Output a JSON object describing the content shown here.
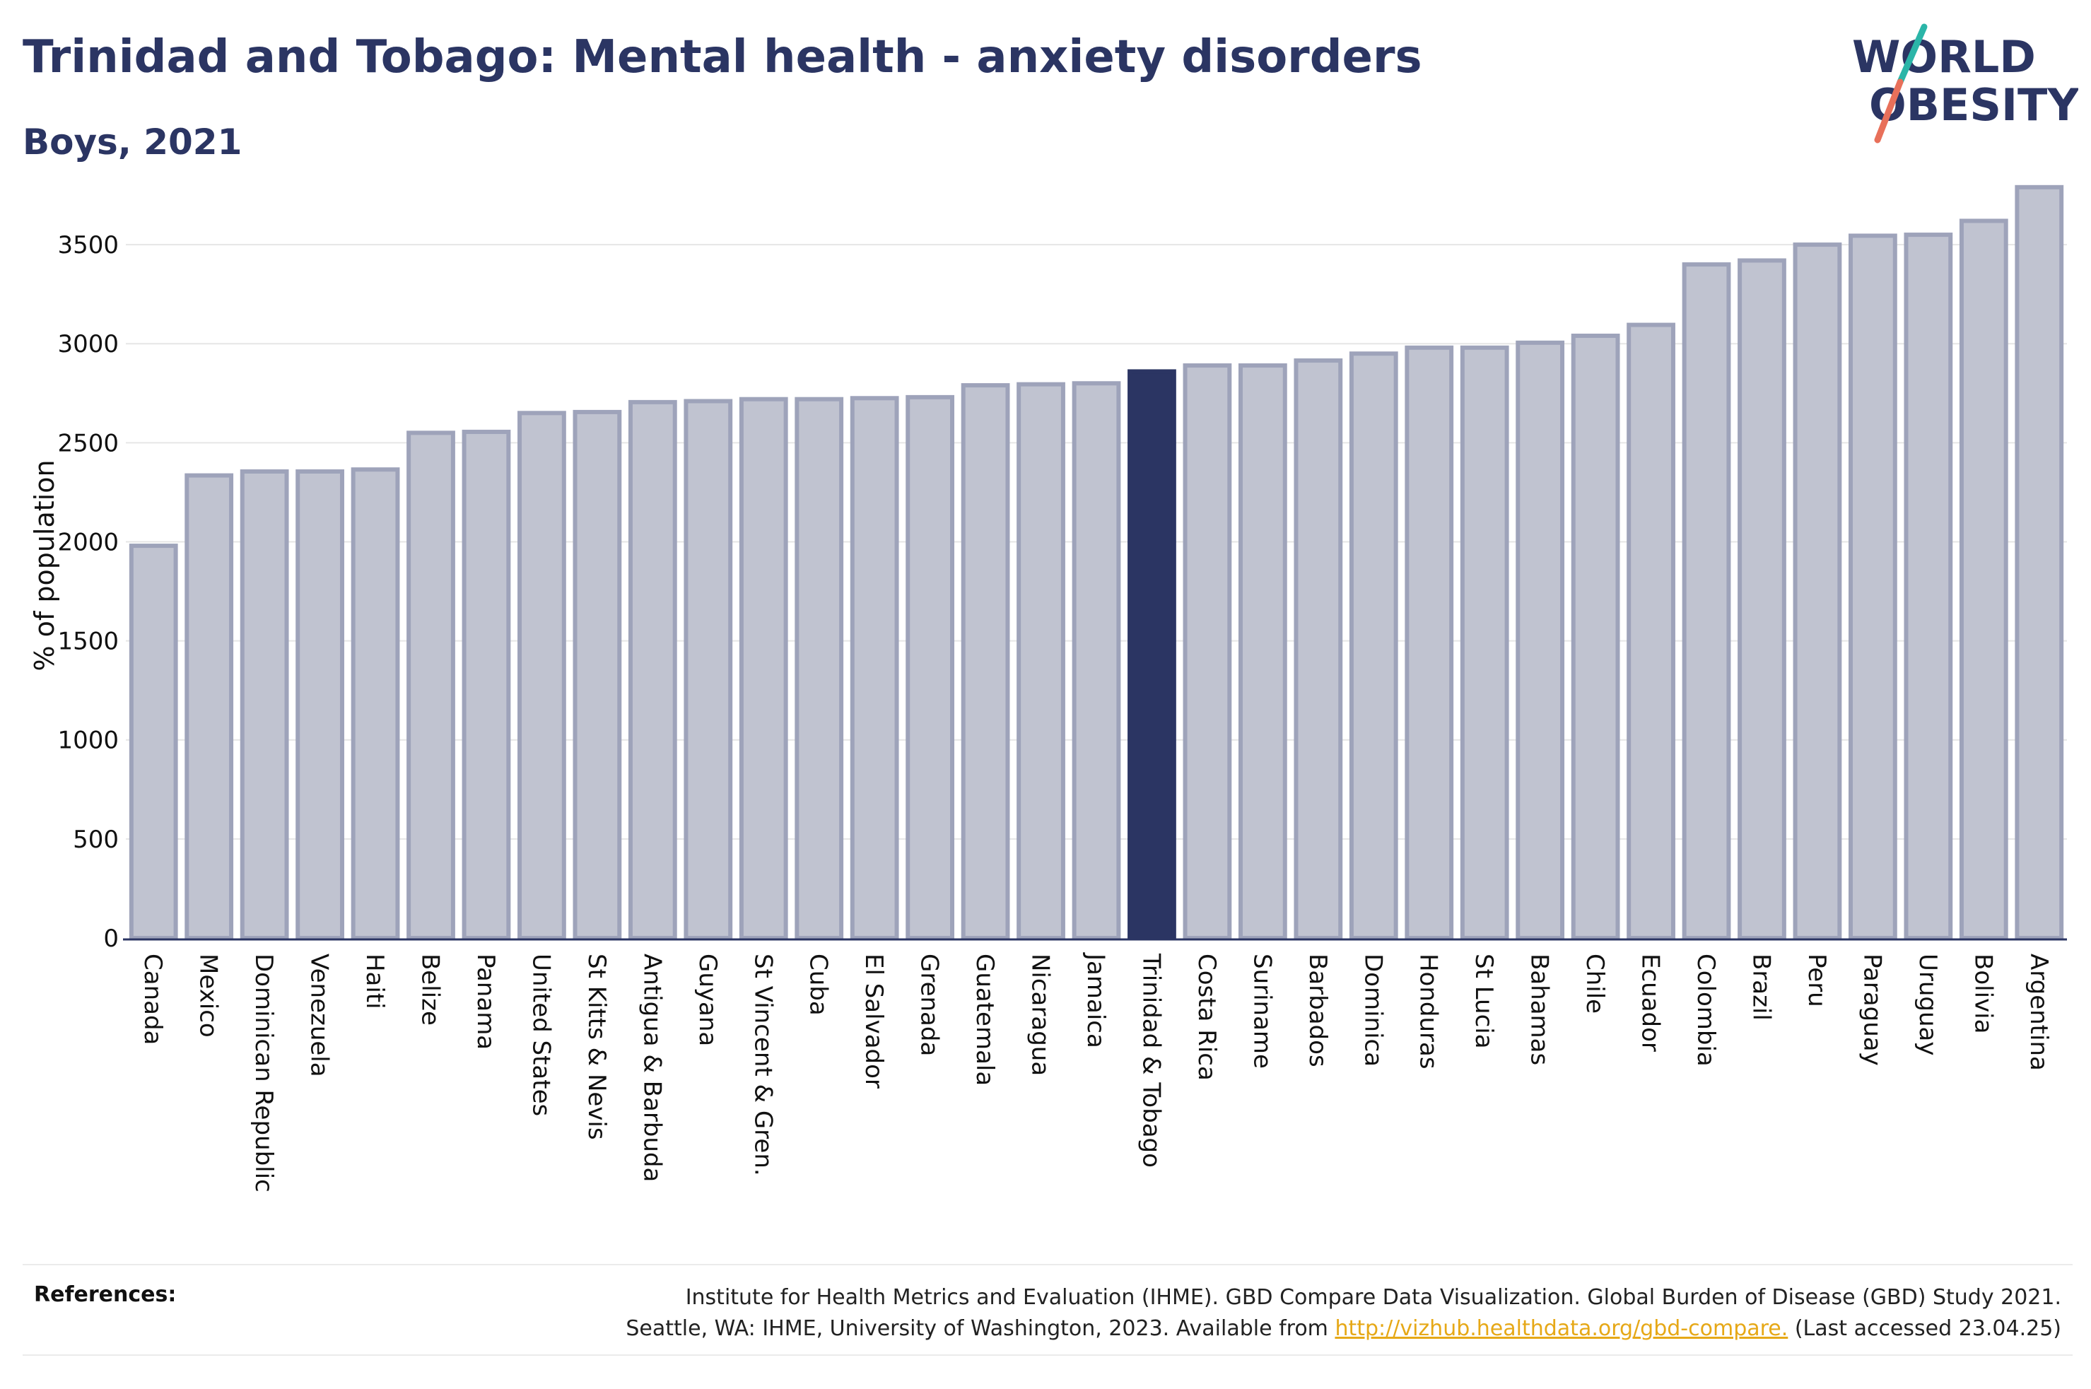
{
  "header": {
    "title": "Trinidad and Tobago: Mental health - anxiety disorders",
    "subtitle": "Boys, 2021"
  },
  "logo": {
    "line1": "WORLD",
    "line2": "OBESITY",
    "colors": {
      "text": "#2b3563",
      "slash_top": "#2bb5a8",
      "slash_bottom": "#e8705a"
    }
  },
  "chart_data": {
    "type": "bar",
    "ylabel": "% of population",
    "ylim": [
      0,
      3800
    ],
    "yticks": [
      0,
      500,
      1000,
      1500,
      2000,
      2500,
      3000,
      3500
    ],
    "grid": true,
    "highlight": "Trinidad & Tobago",
    "colors": {
      "bar": "#c0c3d0",
      "bar_border": "#9ea3ba",
      "highlight": "#2b3563",
      "grid": "#e6e6e6",
      "axis": "#2b3563"
    },
    "categories": [
      "Canada",
      "Mexico",
      "Dominican Republic",
      "Venezuela",
      "Haiti",
      "Belize",
      "Panama",
      "United States",
      "St Kitts & Nevis",
      "Antigua & Barbuda",
      "Guyana",
      "St Vincent & Gren.",
      "Cuba",
      "El Salvador",
      "Grenada",
      "Guatemala",
      "Nicaragua",
      "Jamaica",
      "Trinidad & Tobago",
      "Costa Rica",
      "Suriname",
      "Barbados",
      "Dominica",
      "Honduras",
      "St Lucia",
      "Bahamas",
      "Chile",
      "Ecuador",
      "Colombia",
      "Brazil",
      "Peru",
      "Paraguay",
      "Uruguay",
      "Bolivia",
      "Argentina"
    ],
    "values": [
      1980,
      2335,
      2355,
      2355,
      2365,
      2550,
      2555,
      2650,
      2655,
      2705,
      2710,
      2720,
      2720,
      2725,
      2730,
      2790,
      2795,
      2800,
      2860,
      2890,
      2890,
      2915,
      2950,
      2980,
      2980,
      3005,
      3040,
      3095,
      3400,
      3420,
      3500,
      3545,
      3550,
      3620,
      3790
    ]
  },
  "references": {
    "label": "References:",
    "line1": "Institute for Health Metrics and Evaluation (IHME). GBD Compare Data Visualization. Global Burden of Disease (GBD) Study 2021.",
    "line2_before": "Seattle, WA: IHME, University of Washington, 2023. Available from ",
    "link": "http://vizhub.healthdata.org/gbd-compare.",
    "line2_after": " (Last accessed 23.04.25)"
  }
}
